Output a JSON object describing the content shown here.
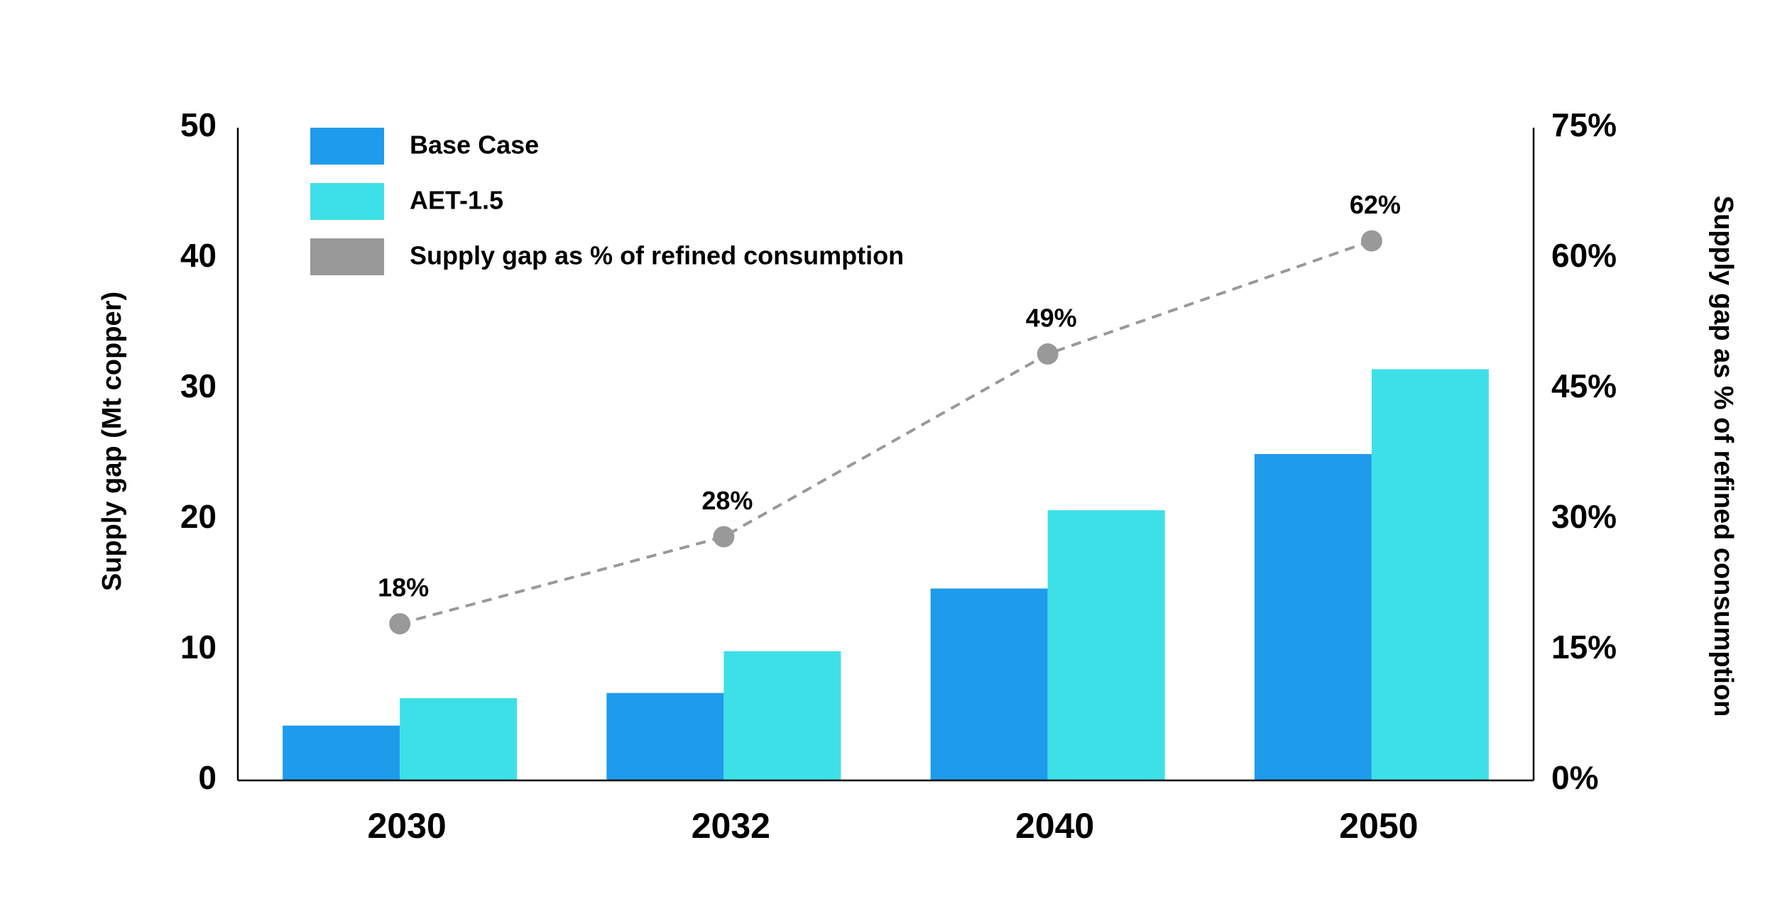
{
  "chart_data": {
    "type": "bar",
    "categories": [
      "2030",
      "2032",
      "2040",
      "2050"
    ],
    "series": [
      {
        "name": "Base Case",
        "kind": "bar",
        "axis": "left",
        "color": "#1F9BEC",
        "values": [
          4.2,
          6.7,
          14.7,
          25.0
        ]
      },
      {
        "name": "AET-1.5",
        "kind": "bar",
        "axis": "left",
        "color": "#3EE0E8",
        "values": [
          6.3,
          9.9,
          20.7,
          31.5
        ]
      },
      {
        "name": "Supply gap as % of refined consumption",
        "kind": "line",
        "axis": "right",
        "color": "#999999",
        "line_style": "dashed",
        "values": [
          18,
          28,
          49,
          62
        ]
      }
    ],
    "point_labels": [
      "18%",
      "28%",
      "49%",
      "62%"
    ],
    "ylabel": "Supply gap (Mt copper)",
    "ylim": [
      0,
      50
    ],
    "yticks": [
      "0",
      "10",
      "20",
      "30",
      "40",
      "50"
    ],
    "y2label": "Supply gap as % of refined consumption",
    "y2lim": [
      0,
      75
    ],
    "y2ticks": [
      "0%",
      "15%",
      "30%",
      "45%",
      "60%",
      "75%"
    ],
    "legend": {
      "placement": "top-left",
      "entries": [
        "Base Case",
        "AET-1.5",
        "Supply gap as % of refined consumption"
      ]
    },
    "grid": false
  }
}
